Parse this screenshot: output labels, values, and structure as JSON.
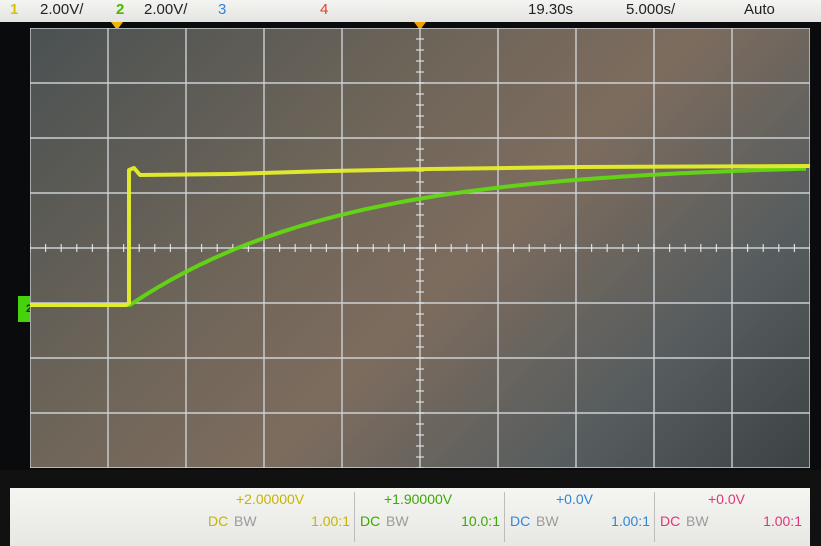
{
  "topbar": {
    "ch1": {
      "num": "1",
      "scale": "2.00V/"
    },
    "ch2": {
      "num": "2",
      "scale": "2.00V/"
    },
    "ch3": {
      "num": "3"
    },
    "ch4": {
      "num": "4"
    },
    "delay": "19.30s",
    "timebase": "5.000s/",
    "trigger_mode": "Auto"
  },
  "markers": {
    "trigger_level": "T",
    "ch2_ground": "2"
  },
  "channels": [
    {
      "offset": "+2.00000V",
      "coupling": "DC",
      "bw": "BW",
      "probe": "1.00:1",
      "color": "#c8b400"
    },
    {
      "offset": "+1.90000V",
      "coupling": "DC",
      "bw": "BW",
      "probe": "10.0:1",
      "color": "#3caa00"
    },
    {
      "offset": "+0.0V",
      "coupling": "DC",
      "bw": "BW",
      "probe": "1.00:1",
      "color": "#2f86d8"
    },
    {
      "offset": "+0.0V",
      "coupling": "DC",
      "bw": "BW",
      "probe": "1.00:1",
      "color": "#e0357a"
    }
  ],
  "colors": {
    "ch1_trace": "#e6ef2a",
    "ch2_trace": "#63d812",
    "grid": "#d8dde0"
  }
}
